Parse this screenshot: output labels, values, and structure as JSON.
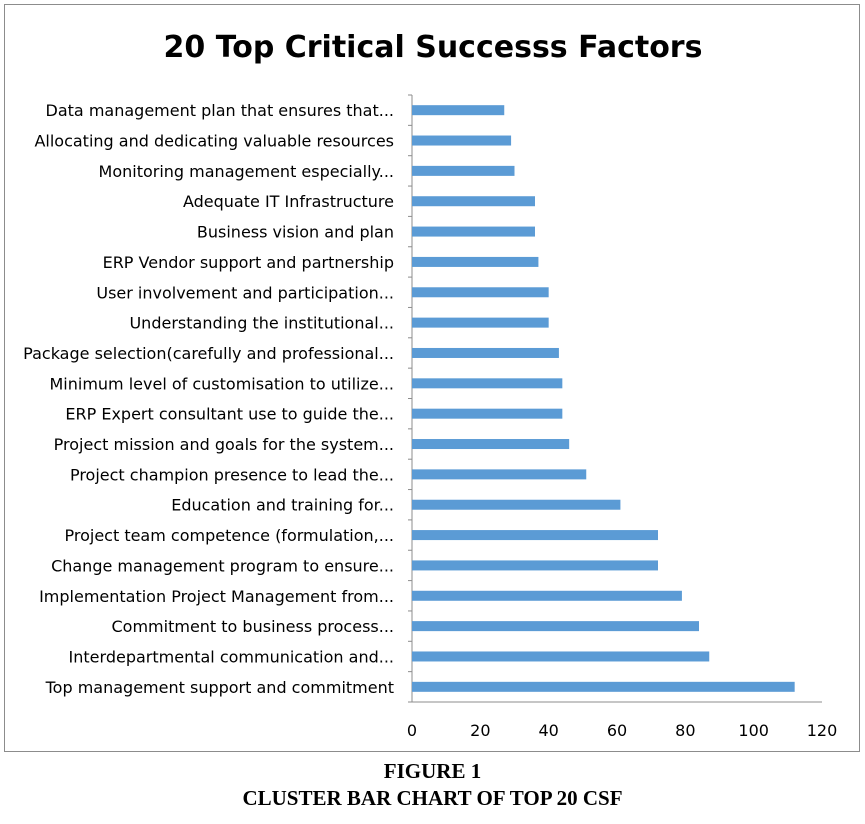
{
  "chart_data": {
    "type": "bar",
    "orientation": "horizontal",
    "title": "20 Top Critical Successs Factors",
    "xlabel": "",
    "ylabel": "",
    "xlim": [
      0,
      120
    ],
    "xticks": [
      "0",
      "20",
      "40",
      "60",
      "80",
      "100",
      "120"
    ],
    "grid": false,
    "legend": "none",
    "bar_color": "#5b9bd5",
    "categories": [
      "Top management support and commitment",
      "Interdepartmental communication and...",
      "Commitment to business process...",
      "Implementation Project Management from...",
      "Change management program to ensure...",
      "Project team competence (formulation,...",
      "Education and training for...",
      "Project champion presence to lead the...",
      "Project mission and goals for the system...",
      "ERP Expert consultant use to guide the...",
      "Minimum level of customisation to utilize...",
      "Package selection(carefully and professional...",
      "Understanding the institutional...",
      "User involvement and participation...",
      "ERP Vendor support and partnership",
      "Business vision and plan",
      "Adequate IT Infrastructure",
      "Monitoring management especially...",
      "Allocating and dedicating valuable resources",
      "Data management plan that ensures that..."
    ],
    "values": [
      112,
      87,
      84,
      79,
      72,
      72,
      61,
      51,
      46,
      44,
      44,
      43,
      40,
      40,
      37,
      36,
      36,
      30,
      29,
      27
    ]
  },
  "caption": {
    "line1": "FIGURE 1",
    "line2": "CLUSTER BAR CHART OF TOP 20 CSF"
  }
}
